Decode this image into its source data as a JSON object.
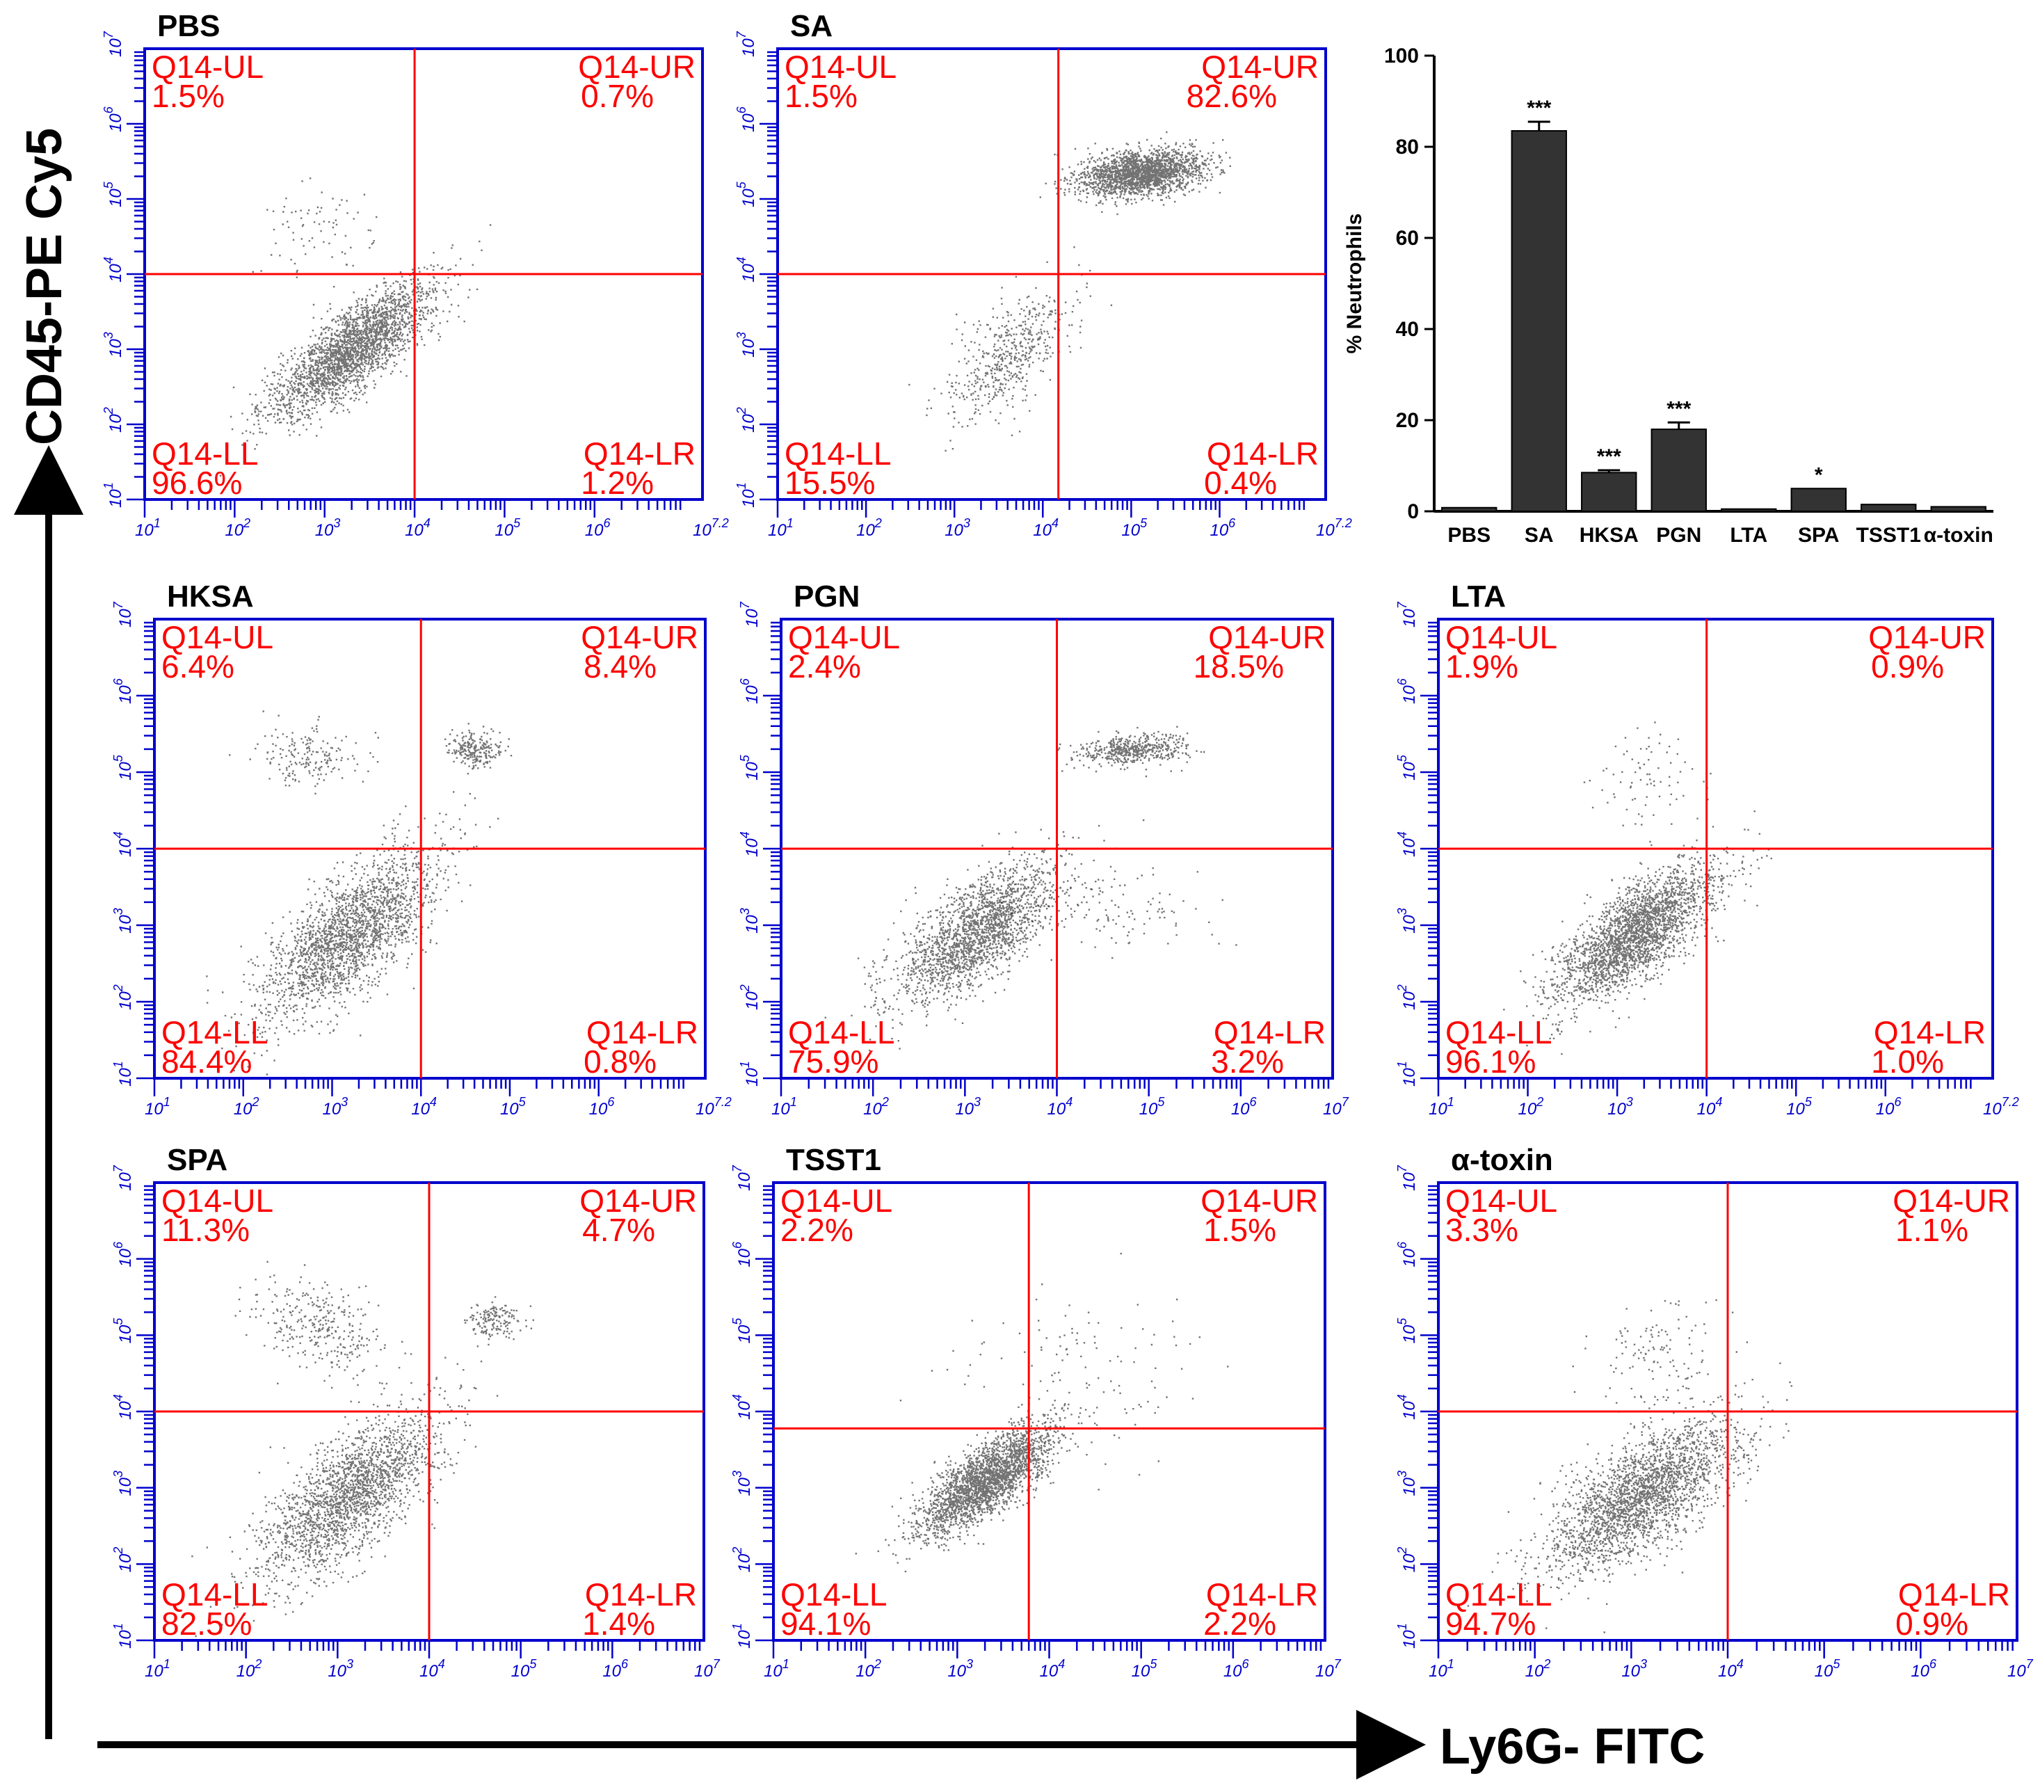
{
  "figure": {
    "y_axis_label": "CD45-PE Cy5",
    "x_axis_label": "Ly6G- FITC",
    "quadrant_names": [
      "Q14-UL",
      "Q14-UR",
      "Q14-LL",
      "Q14-LR"
    ],
    "colors": {
      "frame": "#0000cc",
      "gate": "#ff0000",
      "quadrant_text": "#ff0000",
      "dots": "#000000",
      "bars": "#333333"
    }
  },
  "chart_data": [
    {
      "type": "scatter",
      "title": "PBS",
      "x_scale": "log",
      "y_scale": "log",
      "x_ticks": [
        "10^1",
        "10^2",
        "10^3",
        "10^4",
        "10^5",
        "10^6",
        "10^7.2"
      ],
      "y_ticks": [
        "10^1",
        "10^2",
        "10^3",
        "10^4",
        "10^5",
        "10^6",
        "10^7"
      ],
      "gate": {
        "x": 10000,
        "y": 10000
      },
      "quadrants": {
        "UL": "1.5%",
        "UR": "0.7%",
        "LL": "96.6%",
        "LR": "1.2%"
      },
      "populations": [
        {
          "cx": 3.3,
          "cy": 3.0,
          "sx": 0.45,
          "sy": 0.45,
          "rho": 0.8,
          "share": 0.97
        },
        {
          "cx": 2.9,
          "cy": 4.6,
          "sx": 0.35,
          "sy": 0.3,
          "rho": 0.0,
          "share": 0.03
        }
      ]
    },
    {
      "type": "scatter",
      "title": "SA",
      "x_scale": "log",
      "y_scale": "log",
      "x_ticks": [
        "10^1",
        "10^2",
        "10^3",
        "10^4",
        "10^5",
        "10^6",
        "10^7.2"
      ],
      "y_ticks": [
        "10^1",
        "10^2",
        "10^3",
        "10^4",
        "10^5",
        "10^6",
        "10^7"
      ],
      "gate": {
        "x": 15000,
        "y": 10000
      },
      "quadrants": {
        "UL": "1.5%",
        "UR": "82.6%",
        "LL": "15.5%",
        "LR": "0.4%"
      },
      "populations": [
        {
          "cx": 5.1,
          "cy": 5.35,
          "sx": 0.35,
          "sy": 0.15,
          "rho": 0.3,
          "share": 0.8
        },
        {
          "cx": 3.6,
          "cy": 2.9,
          "sx": 0.35,
          "sy": 0.45,
          "rho": 0.6,
          "share": 0.2
        }
      ]
    },
    {
      "type": "bar",
      "title": "",
      "ylabel": "% Neutrophils",
      "categories": [
        "PBS",
        "SA",
        "HKSA",
        "PGN",
        "LTA",
        "SPA",
        "TSST1",
        "α-toxin"
      ],
      "values": [
        0.8,
        83.5,
        8.5,
        18.0,
        0.5,
        5.0,
        1.5,
        1.0
      ],
      "errors": [
        0,
        2.0,
        0.5,
        1.5,
        0,
        0,
        0,
        0
      ],
      "significance": [
        "",
        "***",
        "***",
        "***",
        "",
        "*",
        "",
        ""
      ],
      "yticks": [
        "0",
        "20",
        "40",
        "60",
        "80",
        "100"
      ],
      "ylim": [
        0,
        100
      ]
    },
    {
      "type": "scatter",
      "title": "HKSA",
      "x_scale": "log",
      "y_scale": "log",
      "x_ticks": [
        "10^1",
        "10^2",
        "10^3",
        "10^4",
        "10^5",
        "10^6",
        "10^7.2"
      ],
      "y_ticks": [
        "10^1",
        "10^2",
        "10^3",
        "10^4",
        "10^5",
        "10^6",
        "10^7"
      ],
      "gate": {
        "x": 10000,
        "y": 10000
      },
      "quadrants": {
        "UL": "6.4%",
        "UR": "8.4%",
        "LL": "84.4%",
        "LR": "0.8%"
      },
      "populations": [
        {
          "cx": 3.2,
          "cy": 2.9,
          "sx": 0.5,
          "sy": 0.55,
          "rho": 0.7,
          "share": 0.84
        },
        {
          "cx": 2.7,
          "cy": 5.2,
          "sx": 0.3,
          "sy": 0.2,
          "rho": 0.0,
          "share": 0.07
        },
        {
          "cx": 4.6,
          "cy": 5.3,
          "sx": 0.15,
          "sy": 0.12,
          "rho": 0.0,
          "share": 0.09
        }
      ]
    },
    {
      "type": "scatter",
      "title": "PGN",
      "x_scale": "log",
      "y_scale": "log",
      "x_ticks": [
        "10^1",
        "10^2",
        "10^3",
        "10^4",
        "10^5",
        "10^6",
        "10^7"
      ],
      "y_ticks": [
        "10^1",
        "10^2",
        "10^3",
        "10^4",
        "10^5",
        "10^6",
        "10^7"
      ],
      "gate": {
        "x": 10000,
        "y": 10000
      },
      "quadrants": {
        "UL": "2.4%",
        "UR": "18.5%",
        "LL": "75.9%",
        "LR": "3.2%"
      },
      "populations": [
        {
          "cx": 3.1,
          "cy": 2.9,
          "sx": 0.45,
          "sy": 0.45,
          "rho": 0.7,
          "share": 0.76
        },
        {
          "cx": 4.8,
          "cy": 5.3,
          "sx": 0.3,
          "sy": 0.1,
          "rho": 0.3,
          "share": 0.19
        },
        {
          "cx": 4.6,
          "cy": 3.3,
          "sx": 0.7,
          "sy": 0.3,
          "rho": 0.0,
          "share": 0.05
        }
      ]
    },
    {
      "type": "scatter",
      "title": "LTA",
      "x_scale": "log",
      "y_scale": "log",
      "x_ticks": [
        "10^1",
        "10^2",
        "10^3",
        "10^4",
        "10^5",
        "10^6",
        "10^7.2"
      ],
      "y_ticks": [
        "10^1",
        "10^2",
        "10^3",
        "10^4",
        "10^5",
        "10^6",
        "10^7"
      ],
      "gate": {
        "x": 10000,
        "y": 10000
      },
      "quadrants": {
        "UL": "1.9%",
        "UR": "0.9%",
        "LL": "96.1%",
        "LR": "1.0%"
      },
      "populations": [
        {
          "cx": 3.2,
          "cy": 2.9,
          "sx": 0.45,
          "sy": 0.45,
          "rho": 0.75,
          "share": 0.97
        },
        {
          "cx": 3.3,
          "cy": 4.9,
          "sx": 0.3,
          "sy": 0.3,
          "rho": 0.0,
          "share": 0.03
        }
      ]
    },
    {
      "type": "scatter",
      "title": "SPA",
      "x_scale": "log",
      "y_scale": "log",
      "x_ticks": [
        "10^1",
        "10^2",
        "10^3",
        "10^4",
        "10^5",
        "10^6",
        "10^7"
      ],
      "y_ticks": [
        "10^1",
        "10^2",
        "10^3",
        "10^4",
        "10^5",
        "10^6",
        "10^7"
      ],
      "gate": {
        "x": 10000,
        "y": 10000
      },
      "quadrants": {
        "UL": "11.3%",
        "UR": "4.7%",
        "LL": "82.5%",
        "LR": "1.4%"
      },
      "populations": [
        {
          "cx": 3.1,
          "cy": 2.9,
          "sx": 0.5,
          "sy": 0.55,
          "rho": 0.7,
          "share": 0.82
        },
        {
          "cx": 2.8,
          "cy": 5.1,
          "sx": 0.35,
          "sy": 0.3,
          "rho": -0.3,
          "share": 0.12
        },
        {
          "cx": 4.7,
          "cy": 5.2,
          "sx": 0.15,
          "sy": 0.12,
          "rho": 0.0,
          "share": 0.06
        }
      ]
    },
    {
      "type": "scatter",
      "title": "TSST1",
      "x_scale": "log",
      "y_scale": "log",
      "x_ticks": [
        "10^1",
        "10^2",
        "10^3",
        "10^4",
        "10^5",
        "10^6",
        "10^7"
      ],
      "y_ticks": [
        "10^1",
        "10^2",
        "10^3",
        "10^4",
        "10^5",
        "10^6",
        "10^7"
      ],
      "gate": {
        "x": 6000,
        "y": 6000
      },
      "quadrants": {
        "UL": "2.2%",
        "UR": "1.5%",
        "LL": "94.1%",
        "LR": "2.2%"
      },
      "populations": [
        {
          "cx": 3.3,
          "cy": 3.1,
          "sx": 0.35,
          "sy": 0.35,
          "rho": 0.75,
          "share": 0.95
        },
        {
          "cx": 4.3,
          "cy": 4.5,
          "sx": 0.7,
          "sy": 0.6,
          "rho": 0.0,
          "share": 0.05
        }
      ]
    },
    {
      "type": "scatter",
      "title": "α-toxin",
      "x_scale": "log",
      "y_scale": "log",
      "x_ticks": [
        "10^1",
        "10^2",
        "10^3",
        "10^4",
        "10^5",
        "10^6",
        "10^7"
      ],
      "y_ticks": [
        "10^1",
        "10^2",
        "10^3",
        "10^4",
        "10^5",
        "10^6",
        "10^7"
      ],
      "gate": {
        "x": 10000,
        "y": 10000
      },
      "quadrants": {
        "UL": "3.3%",
        "UR": "1.1%",
        "LL": "94.7%",
        "LR": "0.9%"
      },
      "populations": [
        {
          "cx": 3.1,
          "cy": 2.9,
          "sx": 0.5,
          "sy": 0.5,
          "rho": 0.7,
          "share": 0.95
        },
        {
          "cx": 3.3,
          "cy": 4.7,
          "sx": 0.3,
          "sy": 0.35,
          "rho": 0.0,
          "share": 0.05
        }
      ]
    }
  ]
}
